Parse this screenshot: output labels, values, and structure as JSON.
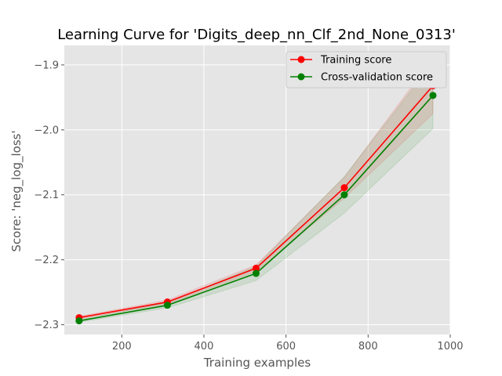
{
  "chart_data": {
    "type": "line",
    "title": "Learning Curve for 'Digits_deep_nn_Clf_2nd_None_0313'",
    "xlabel": "Training examples",
    "ylabel": "Score: 'neg_log_loss'",
    "xlim": [
      60,
      1000
    ],
    "ylim": [
      -2.315,
      -1.87
    ],
    "xticks": [
      200,
      400,
      600,
      800,
      1000
    ],
    "yticks": [
      -2.3,
      -2.2,
      -2.1,
      -2.0,
      -1.9
    ],
    "xtick_labels": [
      "200",
      "400",
      "600",
      "800",
      "1000"
    ],
    "ytick_labels": [
      "−2.3",
      "−2.2",
      "−2.1",
      "−2.0",
      "−1.9"
    ],
    "grid": true,
    "legend_position": "top-right",
    "x": [
      96,
      311,
      527,
      742,
      958
    ],
    "series": [
      {
        "name": "Training score",
        "color": "#ff0000",
        "values": [
          -2.289,
          -2.265,
          -2.213,
          -2.089,
          -1.932
        ],
        "band_low": [
          -2.291,
          -2.268,
          -2.218,
          -2.105,
          -1.975
        ],
        "band_high": [
          -2.287,
          -2.262,
          -2.208,
          -2.073,
          -1.889
        ]
      },
      {
        "name": "Cross-validation score",
        "color": "#008000",
        "values": [
          -2.294,
          -2.27,
          -2.221,
          -2.1,
          -1.947
        ],
        "band_low": [
          -2.296,
          -2.274,
          -2.232,
          -2.128,
          -1.998
        ],
        "band_high": [
          -2.292,
          -2.266,
          -2.21,
          -2.072,
          -1.896
        ]
      }
    ]
  }
}
